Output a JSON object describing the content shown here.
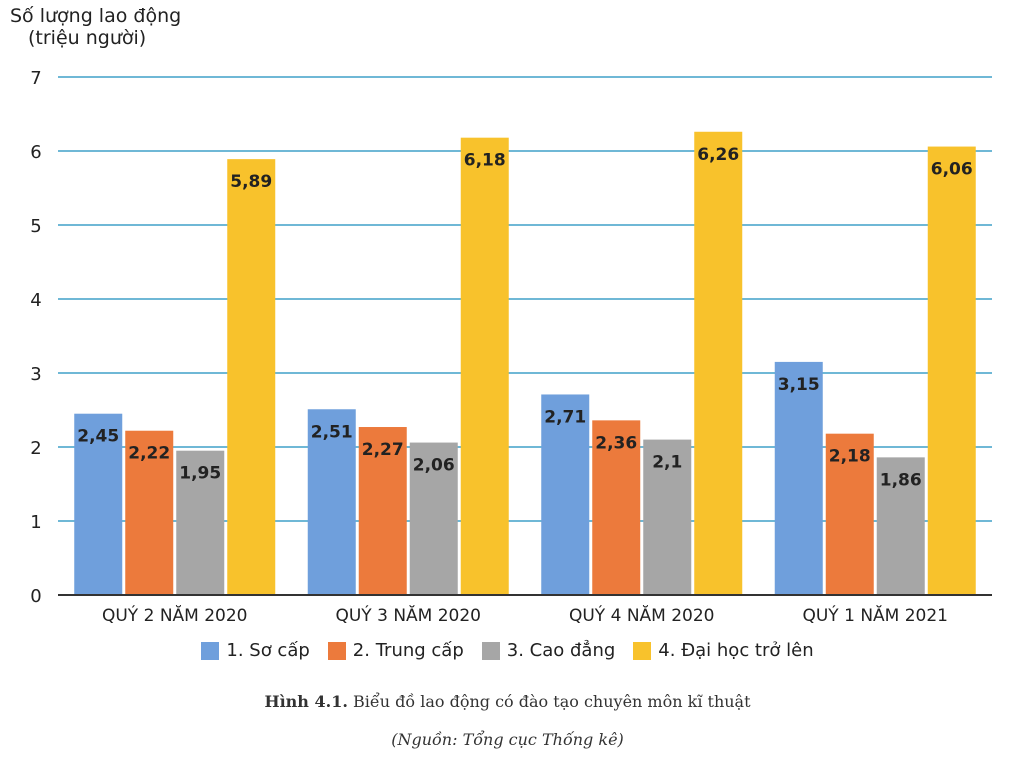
{
  "chart_data": {
    "type": "bar",
    "ylabel_line1": "Số lượng lao động",
    "ylabel_line2": "(triệu người)",
    "ylim": [
      0,
      7
    ],
    "yticks": [
      "0",
      "1",
      "2",
      "3",
      "4",
      "5",
      "6",
      "7"
    ],
    "grid": true,
    "legend_position": "bottom",
    "categories": [
      "QUÝ 2 NĂM 2020",
      "QUÝ 3 NĂM 2020",
      "QUÝ 4 NĂM 2020",
      "QUÝ 1 NĂM 2021"
    ],
    "series": [
      {
        "name": "1. Sơ cấp",
        "color": "#6f9fdc",
        "values": [
          2.45,
          2.51,
          2.71,
          3.15
        ],
        "labels": [
          "2,45",
          "2,51",
          "2,71",
          "3,15"
        ]
      },
      {
        "name": "2. Trung cấp",
        "color": "#ec7a3c",
        "values": [
          2.22,
          2.27,
          2.36,
          2.18
        ],
        "labels": [
          "2,22",
          "2,27",
          "2,36",
          "2,18"
        ]
      },
      {
        "name": "3. Cao đẳng",
        "color": "#a6a6a6",
        "values": [
          1.95,
          2.06,
          2.1,
          1.86
        ],
        "labels": [
          "1,95",
          "2,06",
          "2,1",
          "1,86"
        ]
      },
      {
        "name": "4. Đại học trở lên",
        "color": "#f8c22c",
        "values": [
          5.89,
          6.18,
          6.26,
          6.06
        ],
        "labels": [
          "5,89",
          "6,18",
          "6,26",
          "6,06"
        ]
      }
    ]
  },
  "caption": {
    "prefix": "Hình 4.1.",
    "text": " Biểu đồ lao động có đào tạo chuyên môn kĩ thuật",
    "source": "(Nguồn: Tổng cục Thống kê)"
  },
  "colors": {
    "grid": "#6fb8d6",
    "axis": "#333333"
  }
}
